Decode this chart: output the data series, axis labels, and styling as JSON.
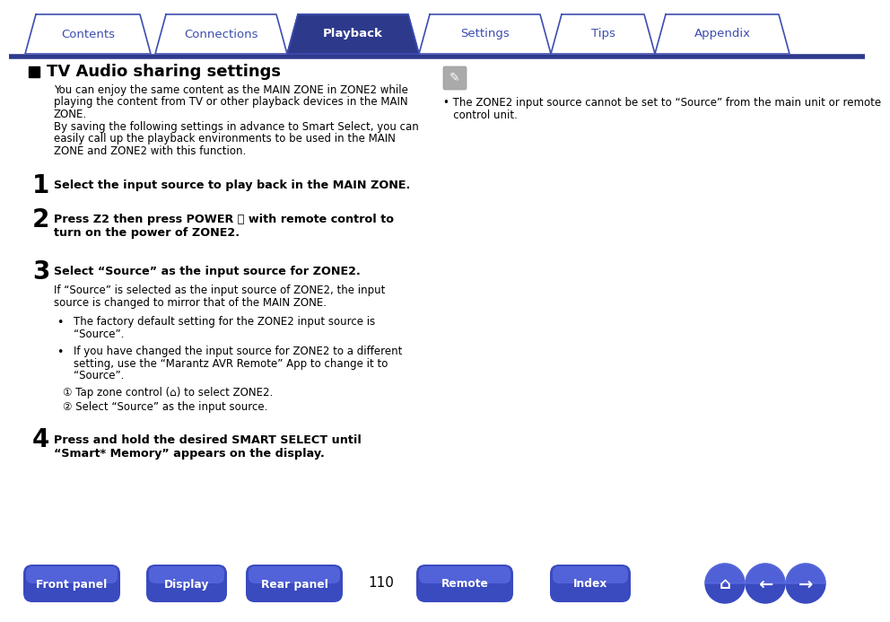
{
  "bg_color": "#ffffff",
  "tab_active_bg": "#2d3a8c",
  "tab_inactive_bg": "#ffffff",
  "tab_border": "#3d4db0",
  "tab_active_text": "#ffffff",
  "tab_inactive_text": "#3d4db0",
  "tabs": [
    "Contents",
    "Connections",
    "Playback",
    "Settings",
    "Tips",
    "Appendix"
  ],
  "active_tab_index": 2,
  "header_line_color": "#2d3a8c",
  "title": "TV Audio sharing settings",
  "text_color": "#000000",
  "btn_bg_dark": "#2d3a8c",
  "btn_bg_light": "#5566cc",
  "btn_text_color": "#ffffff",
  "bottom_buttons": [
    "Front panel",
    "Display",
    "Rear panel",
    "Remote",
    "Index"
  ],
  "page_number": "110",
  "intro_line1": "You can enjoy the same content as the MAIN ZONE in ZONE2 while",
  "intro_line2": "playing the content from TV or other playback devices in the MAIN",
  "intro_line3": "ZONE.",
  "intro_line4": "By saving the following settings in advance to Smart Select, you can",
  "intro_line5": "easily call up the playback environments to be used in the MAIN",
  "intro_line6": "ZONE and ZONE2 with this function.",
  "step1_bold": "Select the input source to play back in the MAIN ZONE.",
  "step2_bold": "Press Z2 then press POWER ⏻ with remote control to",
  "step2_bold2": "turn on the power of ZONE2.",
  "step3_bold": "Select “Source” as the input source for ZONE2.",
  "step3_body1": "If “Source” is selected as the input source of ZONE2, the input",
  "step3_body2": "source is changed to mirror that of the MAIN ZONE.",
  "bullet1_line1": "The factory default setting for the ZONE2 input source is",
  "bullet1_line2": "“Source”.",
  "bullet2_line1": "If you have changed the input source for ZONE2 to a different",
  "bullet2_line2": "setting, use the “Marantz AVR Remote” App to change it to",
  "bullet2_line3": "“Source”.",
  "substep1": "① Tap zone control (⌂) to select ZONE2.",
  "substep2": "② Select “Source” as the input source.",
  "step4_bold1": "Press and hold the desired SMART SELECT until",
  "step4_bold2": "“Smart* Memory” appears on the display.",
  "note_bullet": "• The ZONE2 input source cannot be set to “Source” from the main unit or remote",
  "note_bullet2": "   control unit."
}
